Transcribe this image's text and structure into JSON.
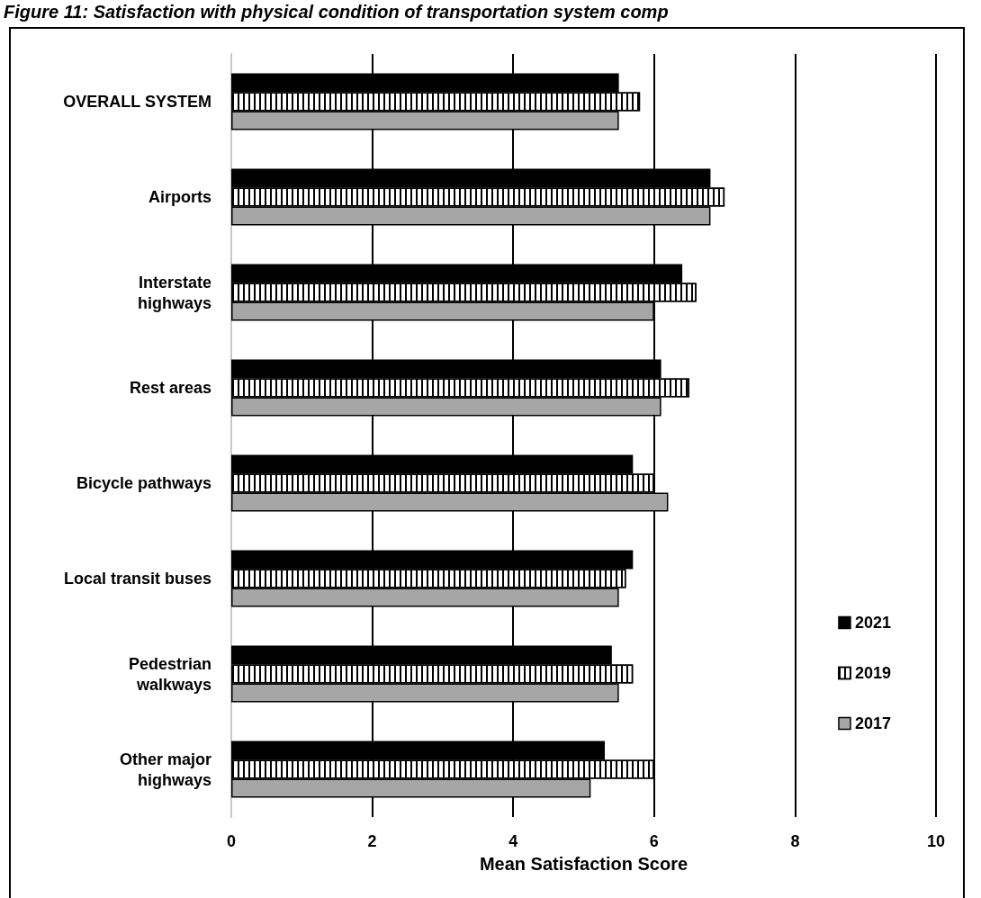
{
  "chart_data": {
    "type": "bar",
    "orientation": "horizontal",
    "title": "Figure 11: Satisfaction with physical condition of transportation system comp",
    "xlabel": "Mean Satisfaction Score",
    "categories": [
      "OVERALL SYSTEM",
      "Airports",
      "Interstate\nhighways",
      "Rest areas",
      "Bicycle pathways",
      "Local transit buses",
      "Pedestrian\nwalkways",
      "Other major\nhighways"
    ],
    "series": [
      {
        "name": "2021",
        "color": "#000000",
        "values": [
          5.5,
          6.8,
          6.4,
          6.1,
          5.7,
          5.7,
          5.4,
          5.3
        ]
      },
      {
        "name": "2019",
        "color": "#ffffff",
        "values": [
          5.8,
          7.0,
          6.6,
          6.5,
          6.0,
          5.6,
          5.7,
          6.0
        ]
      },
      {
        "name": "2017",
        "color": "#a6a6a6",
        "values": [
          5.5,
          6.8,
          6.0,
          6.1,
          6.2,
          5.5,
          5.5,
          5.1
        ]
      }
    ],
    "xlim": [
      0,
      10
    ],
    "xticks": [
      0,
      2,
      4,
      6,
      8,
      10
    ],
    "grid": "x",
    "legend": "bottom right"
  }
}
